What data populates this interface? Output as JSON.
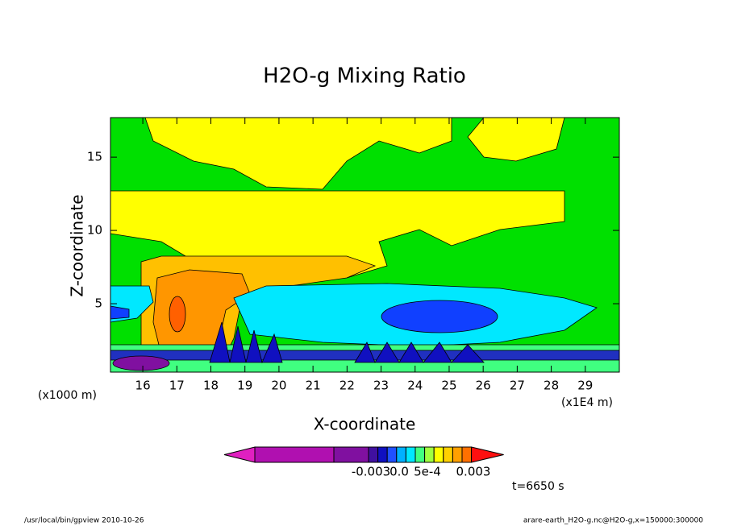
{
  "chart_data": {
    "type": "contour",
    "title": "H2O-g Mixing Ratio",
    "x_label": "X-coordinate",
    "y_label": "Z-coordinate",
    "x_unit": "(x1E4 m)",
    "y_unit": "(x1000 m)",
    "xlim": [
      15.05,
      30
    ],
    "ylim": [
      0.33,
      17.7
    ],
    "xticks": [
      16,
      17,
      18,
      19,
      20,
      21,
      22,
      23,
      24,
      25,
      26,
      27,
      28,
      29
    ],
    "yticks": [
      5,
      10,
      15
    ],
    "colorbar": {
      "colors": [
        "#e020c0",
        "#b010b0",
        "#8010a0",
        "#4010a0",
        "#1010c0",
        "#2050ff",
        "#00b0ff",
        "#00e8ff",
        "#40ff80",
        "#a0ff40",
        "#ffff00",
        "#ffd000",
        "#ffa000",
        "#ff7000",
        "#ff1010"
      ],
      "ticks": [
        {
          "value": -0.003,
          "label": "-0.003"
        },
        {
          "value": 0,
          "label": "0.0"
        },
        {
          "value": 0.0005,
          "label": "5e-4"
        },
        0.003
      ]
    },
    "time_label": "t=6650 s",
    "footer_left": "/usr/local/bin/gpview  2010-10-26",
    "footer_right": "arare-earth_H2O-g.nc@H2O-g,x=150000:300000"
  }
}
